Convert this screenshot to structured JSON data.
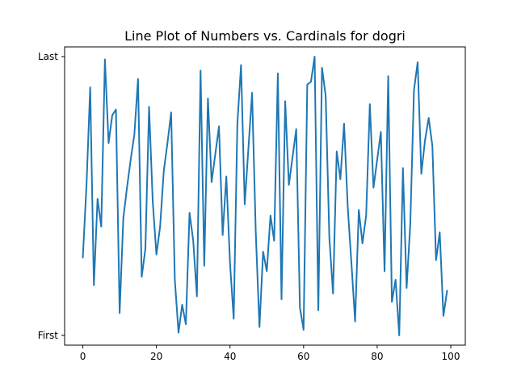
{
  "chart_data": {
    "type": "line",
    "title": "Line Plot of Numbers vs. Cardinals for dogri",
    "xlabel": "",
    "ylabel": "",
    "xlim": [
      -4.95,
      103.95
    ],
    "ylim": [
      -0.035,
      1.035
    ],
    "x_ticks": [
      0,
      20,
      40,
      60,
      80,
      100
    ],
    "y_ticks": [
      {
        "value": 0,
        "label": "First"
      },
      {
        "value": 1,
        "label": "Last"
      }
    ],
    "grid": false,
    "legend": "none",
    "series_color": "#1f77b4",
    "x": [
      0,
      1,
      2,
      3,
      4,
      5,
      6,
      7,
      8,
      9,
      10,
      11,
      12,
      13,
      14,
      15,
      16,
      17,
      18,
      19,
      20,
      21,
      22,
      23,
      24,
      25,
      26,
      27,
      28,
      29,
      30,
      31,
      32,
      33,
      34,
      35,
      36,
      37,
      38,
      39,
      40,
      41,
      42,
      43,
      44,
      45,
      46,
      47,
      48,
      49,
      50,
      51,
      52,
      53,
      54,
      55,
      56,
      57,
      58,
      59,
      60,
      61,
      62,
      63,
      64,
      65,
      66,
      67,
      68,
      69,
      70,
      71,
      72,
      73,
      74,
      75,
      76,
      77,
      78,
      79,
      80,
      81,
      82,
      83,
      84,
      85,
      86,
      87,
      88,
      89,
      90,
      91,
      92,
      93,
      94,
      95,
      96,
      97,
      98,
      99
    ],
    "values": [
      0.28,
      0.54,
      0.89,
      0.18,
      0.49,
      0.39,
      0.99,
      0.69,
      0.79,
      0.81,
      0.08,
      0.42,
      0.53,
      0.63,
      0.72,
      0.92,
      0.21,
      0.31,
      0.82,
      0.48,
      0.29,
      0.39,
      0.59,
      0.69,
      0.8,
      0.2,
      0.01,
      0.11,
      0.04,
      0.44,
      0.34,
      0.14,
      0.95,
      0.25,
      0.85,
      0.55,
      0.65,
      0.75,
      0.36,
      0.57,
      0.26,
      0.06,
      0.76,
      0.97,
      0.47,
      0.67,
      0.87,
      0.37,
      0.03,
      0.3,
      0.23,
      0.43,
      0.34,
      0.94,
      0.13,
      0.84,
      0.54,
      0.64,
      0.74,
      0.1,
      0.02,
      0.9,
      0.91,
      1.0,
      0.09,
      0.96,
      0.86,
      0.35,
      0.15,
      0.66,
      0.56,
      0.76,
      0.46,
      0.26,
      0.05,
      0.45,
      0.33,
      0.43,
      0.83,
      0.53,
      0.63,
      0.73,
      0.23,
      0.93,
      0.12,
      0.2,
      0.0,
      0.6,
      0.17,
      0.4,
      0.88,
      0.98,
      0.58,
      0.7,
      0.78,
      0.68,
      0.27,
      0.37,
      0.07,
      0.16
    ]
  }
}
